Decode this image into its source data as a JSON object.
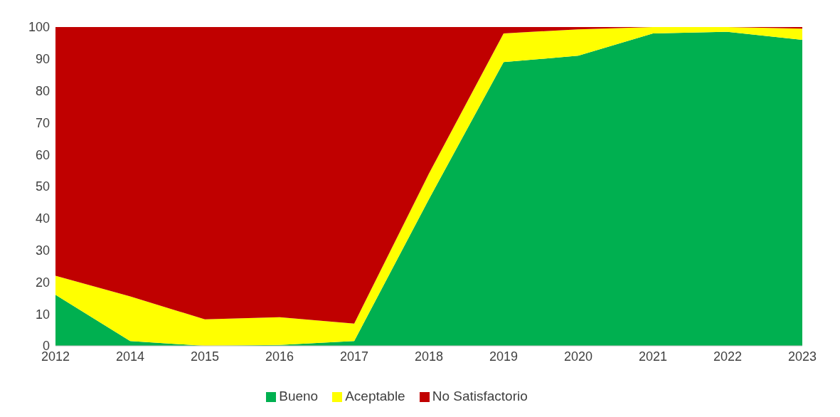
{
  "chart_data": {
    "type": "area",
    "stacked": true,
    "categories": [
      "2012",
      "2014",
      "2015",
      "2016",
      "2017",
      "2018",
      "2019",
      "2020",
      "2021",
      "2022",
      "2023"
    ],
    "series": [
      {
        "name": "Bueno",
        "color": "#00b050",
        "values": [
          16,
          1.5,
          0,
          0.3,
          1.5,
          46,
          89,
          91,
          98,
          98.5,
          96
        ]
      },
      {
        "name": "Aceptable",
        "color": "#ffff00",
        "values": [
          6,
          14,
          8.3,
          8.7,
          5.5,
          8,
          9,
          8.3,
          2,
          1.5,
          3.5
        ]
      },
      {
        "name": "No Satisfactorio",
        "color": "#c00000",
        "values": [
          78,
          84.5,
          91.7,
          91,
          93,
          46,
          2,
          0.7,
          0,
          0,
          0.5
        ]
      }
    ],
    "ylim": [
      0,
      100
    ],
    "yticks": [
      0,
      10,
      20,
      30,
      40,
      50,
      60,
      70,
      80,
      90,
      100
    ],
    "grid": false,
    "legend": "bottom"
  }
}
